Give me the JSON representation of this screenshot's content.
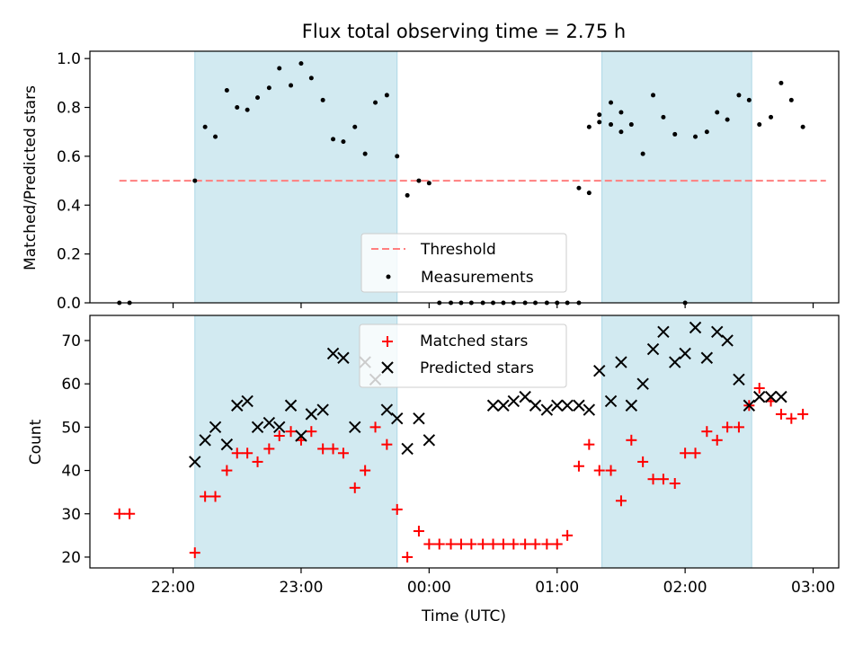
{
  "chart_data": {
    "title": "Flux total observing time = 2.75 h",
    "xlabel": "Time (UTC)",
    "x_unit": "hours UTC (values >= 24 are past midnight of the next day)",
    "xlim": [
      21.35,
      27.2
    ],
    "xticks": [
      22,
      23,
      24,
      25,
      26,
      27
    ],
    "xtick_labels": [
      "22:00",
      "23:00",
      "00:00",
      "01:00",
      "02:00",
      "03:00"
    ],
    "shaded_intervals": [
      [
        22.17,
        23.75
      ],
      [
        25.35,
        26.52
      ]
    ],
    "shade_color": "#add8e6",
    "top": {
      "type": "scatter",
      "ylabel": "Matched/Predicted stars",
      "ylim": [
        0.0,
        1.03
      ],
      "yticks": [
        0.0,
        0.2,
        0.4,
        0.6,
        0.8,
        1.0
      ],
      "ytick_labels": [
        "0.0",
        "0.2",
        "0.4",
        "0.6",
        "0.8",
        "1.0"
      ],
      "threshold": {
        "name": "Threshold",
        "value": 0.5,
        "x": [
          21.58,
          27.1
        ],
        "color": "#ff7f7f"
      },
      "measurements": {
        "name": "Measurements",
        "color": "#000000",
        "x": [
          21.58,
          21.66,
          22.17,
          22.25,
          22.33,
          22.42,
          22.5,
          22.58,
          22.66,
          22.75,
          22.83,
          22.92,
          23.0,
          23.08,
          23.17,
          23.25,
          23.33,
          23.42,
          23.5,
          23.58,
          23.67,
          23.75,
          23.83,
          23.92,
          24.0,
          24.08,
          24.17,
          24.25,
          24.33,
          24.42,
          24.5,
          24.58,
          24.66,
          24.75,
          24.83,
          24.92,
          25.0,
          25.08,
          25.17,
          25.25,
          25.33,
          25.42,
          25.5,
          25.58,
          25.67,
          25.75,
          25.83,
          25.92,
          26.0,
          26.08,
          26.17,
          26.25,
          26.33,
          26.42,
          26.5,
          26.58,
          26.67,
          26.75,
          26.83,
          26.92,
          25.5,
          25.42,
          25.33,
          25.25,
          25.17
        ],
        "y": [
          0.0,
          0.0,
          0.5,
          0.72,
          0.68,
          0.87,
          0.8,
          0.79,
          0.84,
          0.88,
          0.96,
          0.89,
          0.98,
          0.92,
          0.83,
          0.67,
          0.66,
          0.72,
          0.61,
          0.82,
          0.85,
          0.6,
          0.44,
          0.5,
          0.49,
          0.0,
          0.0,
          0.0,
          0.0,
          0.0,
          0.0,
          0.0,
          0.0,
          0.0,
          0.0,
          0.0,
          0.0,
          0.0,
          0.0,
          0.45,
          0.74,
          0.82,
          0.7,
          0.73,
          0.61,
          0.85,
          0.76,
          0.69,
          0.0,
          0.68,
          0.7,
          0.78,
          0.75,
          0.85,
          0.83,
          0.73,
          0.76,
          0.9,
          0.83,
          0.72,
          0.78,
          0.73,
          0.77,
          0.72,
          0.47
        ]
      },
      "legend": {
        "placement": "lower-center"
      }
    },
    "bottom": {
      "type": "scatter",
      "ylabel": "Count",
      "ylim": [
        17.5,
        75.8
      ],
      "yticks": [
        20,
        30,
        40,
        50,
        60,
        70
      ],
      "ytick_labels": [
        "20",
        "30",
        "40",
        "50",
        "60",
        "70"
      ],
      "series": [
        {
          "name": "Matched stars",
          "marker": "plus",
          "color": "#ff0000",
          "x": [
            21.58,
            21.66,
            22.17,
            22.25,
            22.33,
            22.42,
            22.5,
            22.58,
            22.66,
            22.75,
            22.83,
            22.92,
            23.0,
            23.08,
            23.17,
            23.25,
            23.33,
            23.42,
            23.5,
            23.58,
            23.67,
            23.75,
            23.83,
            23.92,
            24.0,
            24.08,
            24.17,
            24.25,
            24.33,
            24.42,
            24.5,
            24.58,
            24.66,
            24.75,
            24.83,
            24.92,
            25.0,
            25.08,
            25.17,
            25.25,
            25.33,
            25.42,
            25.5,
            25.58,
            25.67,
            25.75,
            25.83,
            25.92,
            26.0,
            26.08,
            26.17,
            26.25,
            26.33,
            26.42,
            26.5,
            26.58,
            26.67,
            26.75,
            26.83,
            26.92
          ],
          "y": [
            30,
            30,
            21,
            34,
            34,
            40,
            44,
            44,
            42,
            45,
            48,
            49,
            47,
            49,
            45,
            45,
            44,
            36,
            40,
            50,
            46,
            31,
            20,
            26,
            23,
            23,
            23,
            23,
            23,
            23,
            23,
            23,
            23,
            23,
            23,
            23,
            23,
            25,
            41,
            46,
            40,
            40,
            33,
            47,
            42,
            38,
            38,
            37,
            44,
            44,
            49,
            47,
            50,
            50,
            55,
            59,
            56,
            53,
            52,
            53
          ]
        },
        {
          "name": "Predicted stars",
          "marker": "x",
          "color": "#000000",
          "x": [
            22.17,
            22.25,
            22.33,
            22.42,
            22.5,
            22.58,
            22.66,
            22.75,
            22.83,
            22.92,
            23.0,
            23.08,
            23.17,
            23.25,
            23.33,
            23.42,
            23.5,
            23.58,
            23.67,
            23.75,
            23.83,
            23.92,
            24.0,
            24.5,
            24.58,
            24.66,
            24.75,
            24.83,
            24.92,
            25.0,
            25.08,
            25.17,
            25.25,
            25.33,
            25.42,
            25.5,
            25.58,
            25.67,
            25.75,
            25.83,
            25.92,
            26.0,
            26.08,
            26.17,
            26.25,
            26.33,
            26.42,
            26.5,
            26.58,
            26.67,
            26.75
          ],
          "y": [
            42,
            47,
            50,
            46,
            55,
            56,
            50,
            51,
            50,
            55,
            48,
            53,
            54,
            67,
            66,
            50,
            65,
            61,
            54,
            52,
            45,
            52,
            47,
            55,
            55,
            56,
            57,
            55,
            54,
            55,
            55,
            55,
            54,
            63,
            56,
            65,
            55,
            60,
            68,
            72,
            65,
            67,
            73,
            66,
            72,
            70,
            61,
            55,
            57,
            57,
            57
          ]
        }
      ],
      "legend": {
        "placement": "upper-center"
      }
    }
  }
}
